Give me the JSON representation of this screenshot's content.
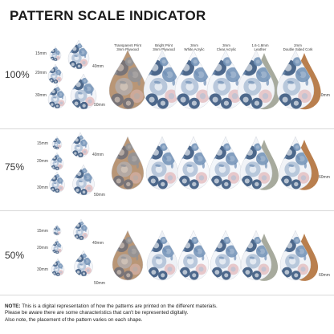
{
  "title": "PATTERN SCALE INDICATOR",
  "materials": [
    {
      "line1": "Transparent Print",
      "line2": "3mm Plywood",
      "fill": "#b99676"
    },
    {
      "line1": "Bright Print",
      "line2": "3mm Plywood",
      "fill": "#eef1f6"
    },
    {
      "line1": "3mm",
      "line2": "White Acrylic",
      "fill": "#f7f8fb"
    },
    {
      "line1": "3mm",
      "line2": "Clear Acrylic",
      "fill": "#f3f6fa"
    },
    {
      "line1": "1.6-1.8mm",
      "line2": "Leather",
      "fill": "#f1f3f7"
    },
    {
      "line1": "2mm",
      "line2": "Double Sided Cork",
      "fill": "#f1f3f7"
    }
  ],
  "rows": [
    {
      "scale": "100%",
      "sizes": [
        "15mm",
        "20mm",
        "30mm",
        "40mm",
        "50mm"
      ],
      "height_label": "60mm"
    },
    {
      "scale": "75%",
      "sizes": [
        "15mm",
        "20mm",
        "30mm",
        "40mm",
        "50mm"
      ],
      "height_label": "60mm"
    },
    {
      "scale": "50%",
      "sizes": [
        "15mm",
        "20mm",
        "30mm",
        "40mm",
        "50mm"
      ],
      "height_label": "60mm"
    }
  ],
  "colors": {
    "navy": "#2f4f78",
    "mid_blue": "#6f8fb5",
    "light_blue": "#aebfd6",
    "pink": "#e4bfc2",
    "leather_back": "#a7aa9d",
    "cork_back": "#b97f4e",
    "wood": "#b99676"
  },
  "note": {
    "label": "NOTE:",
    "line1": "This is a digital representation of how the patterns are printed on the different materials.",
    "line2": "Please be aware there are some characteristics that can't be represented digitally.",
    "line3": "Also note, the placement of the pattern varies on each shape."
  }
}
